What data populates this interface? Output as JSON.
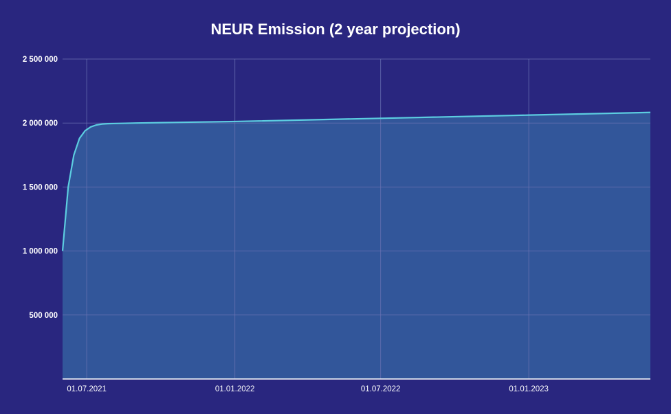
{
  "chart_data": {
    "type": "area",
    "title": "NEUR Emission (2 year projection)",
    "xlabel": "",
    "ylabel": "",
    "x_range": [
      "2021-06-01",
      "2023-06-01"
    ],
    "ylim": [
      0,
      2500000
    ],
    "y_ticks": [
      {
        "value": 500000,
        "label": "500 000"
      },
      {
        "value": 1000000,
        "label": "1 000 000"
      },
      {
        "value": 1500000,
        "label": "1 500 000"
      },
      {
        "value": 2000000,
        "label": "2 000 000"
      },
      {
        "value": 2500000,
        "label": "2 500 000"
      }
    ],
    "x_ticks": [
      {
        "date": "2021-07-01",
        "label": "01.07.2021"
      },
      {
        "date": "2022-01-01",
        "label": "01.01.2022"
      },
      {
        "date": "2022-07-01",
        "label": "01.07.2022"
      },
      {
        "date": "2023-01-01",
        "label": "01.01.2023"
      }
    ],
    "grid": true,
    "legend": "none",
    "series": [
      {
        "x": [
          "2021-06-01",
          "2021-06-08",
          "2021-06-15",
          "2021-06-22",
          "2021-06-29",
          "2021-07-06",
          "2021-07-13",
          "2021-07-20",
          "2021-07-27",
          "2021-08-03",
          "2021-09-01",
          "2021-10-01",
          "2022-01-01",
          "2022-07-01",
          "2023-01-01",
          "2023-06-01"
        ],
        "y": [
          1000000,
          1500000,
          1750000,
          1880000,
          1940000,
          1970000,
          1985000,
          1992000,
          1995000,
          1996000,
          2000000,
          2003000,
          2012000,
          2037000,
          2062000,
          2083000
        ]
      }
    ],
    "colors": {
      "background": "#29267f",
      "area_fill": "#32569a",
      "line": "#5ccde0",
      "grid": "#6b73b3",
      "axis": "#ffffff"
    }
  }
}
